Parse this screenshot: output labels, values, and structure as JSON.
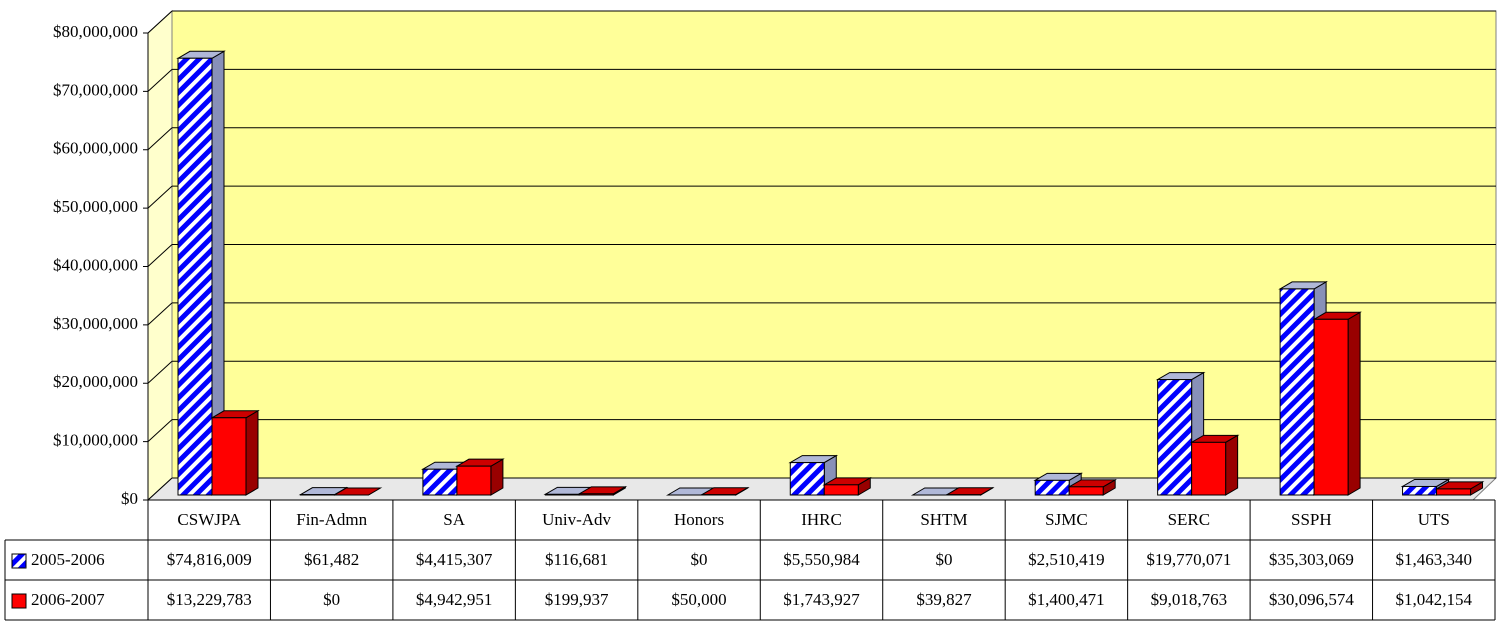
{
  "chart_data": {
    "type": "bar3d",
    "categories": [
      "CSWJPA",
      "Fin-Admn",
      "SA",
      "Univ-Adv",
      "Honors",
      "IHRC",
      "SHTM",
      "SJMC",
      "SERC",
      "SSPH",
      "UTS"
    ],
    "series": [
      {
        "name": "2005-2006",
        "color": "#0000ff",
        "values": [
          74816009,
          61482,
          4415307,
          116681,
          0,
          5550984,
          0,
          2510419,
          19770071,
          35303069,
          1463340
        ],
        "value_labels": [
          "$74,816,009",
          "$61,482",
          "$4,415,307",
          "$116,681",
          "$0",
          "$5,550,984",
          "$0",
          "$2,510,419",
          "$19,770,071",
          "$35,303,069",
          "$1,463,340"
        ]
      },
      {
        "name": "2006-2007",
        "color": "#ff0000",
        "values": [
          13229783,
          0,
          4942951,
          199937,
          50000,
          1743927,
          39827,
          1400471,
          9018763,
          30096574,
          1042154
        ],
        "value_labels": [
          "$13,229,783",
          "$0",
          "$4,942,951",
          "$199,937",
          "$50,000",
          "$1,743,927",
          "$39,827",
          "$1,400,471",
          "$9,018,763",
          "$30,096,574",
          "$1,042,154"
        ]
      }
    ],
    "ylim": [
      0,
      80000000
    ],
    "yticks": [
      {
        "value": 0,
        "label": "$0"
      },
      {
        "value": 10000000,
        "label": "$10,000,000"
      },
      {
        "value": 20000000,
        "label": "$20,000,000"
      },
      {
        "value": 30000000,
        "label": "$30,000,000"
      },
      {
        "value": 40000000,
        "label": "$40,000,000"
      },
      {
        "value": 50000000,
        "label": "$50,000,000"
      },
      {
        "value": 60000000,
        "label": "$60,000,000"
      },
      {
        "value": 70000000,
        "label": "$70,000,000"
      },
      {
        "value": 80000000,
        "label": "$80,000,000"
      }
    ],
    "grid": true
  }
}
